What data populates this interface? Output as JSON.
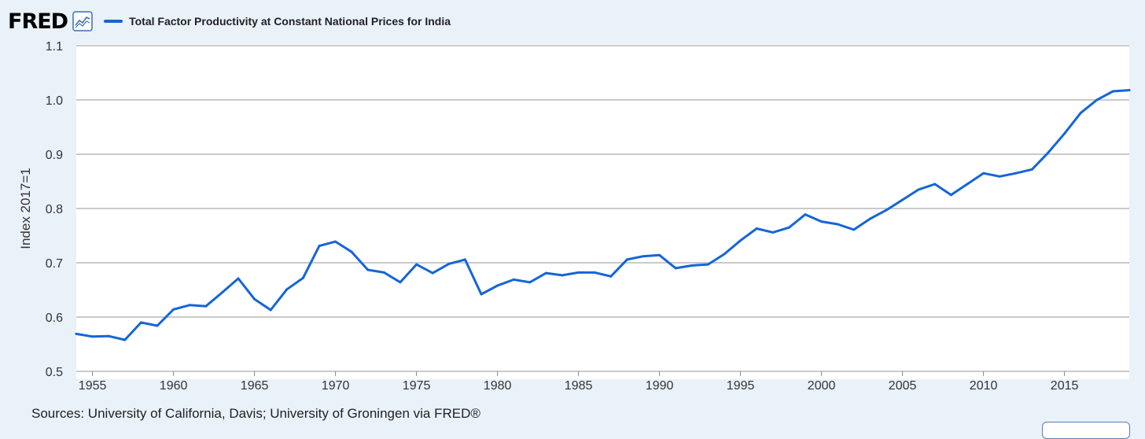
{
  "header": {
    "logo_text": "FRED",
    "logo_icon": "line-graph-icon",
    "legend_label": "Total Factor Productivity at Constant National Prices for India"
  },
  "footer": {
    "sources": "Sources: University of California, Davis; University of Groningen via FRED®"
  },
  "colors": {
    "series": "#1565d8",
    "background": "#e9f1f9",
    "plot_area": "#ffffff",
    "gridline": "#b8b8b8"
  },
  "chart_data": {
    "type": "line",
    "title": "Total Factor Productivity at Constant National Prices for India",
    "xlabel": "",
    "ylabel": "Index 2017=1",
    "xlim": [
      1954,
      2019
    ],
    "ylim": [
      0.5,
      1.1
    ],
    "grid": true,
    "legend": "top-left",
    "x_ticks": [
      1955,
      1960,
      1965,
      1970,
      1975,
      1980,
      1985,
      1990,
      1995,
      2000,
      2005,
      2010,
      2015
    ],
    "y_ticks": [
      "0.5",
      "0.6",
      "0.7",
      "0.8",
      "0.9",
      "1.0",
      "1.1"
    ],
    "series": [
      {
        "name": "Total Factor Productivity at Constant National Prices for India",
        "x": [
          1954,
          1955,
          1956,
          1957,
          1958,
          1959,
          1960,
          1961,
          1962,
          1963,
          1964,
          1965,
          1966,
          1967,
          1968,
          1969,
          1970,
          1971,
          1972,
          1973,
          1974,
          1975,
          1976,
          1977,
          1978,
          1979,
          1980,
          1981,
          1982,
          1983,
          1984,
          1985,
          1986,
          1987,
          1988,
          1989,
          1990,
          1991,
          1992,
          1993,
          1994,
          1995,
          1996,
          1997,
          1998,
          1999,
          2000,
          2001,
          2002,
          2003,
          2004,
          2005,
          2006,
          2007,
          2008,
          2009,
          2010,
          2011,
          2012,
          2013,
          2014,
          2015,
          2016,
          2017,
          2018,
          2019
        ],
        "values": [
          0.569,
          0.564,
          0.565,
          0.558,
          0.59,
          0.584,
          0.614,
          0.622,
          0.62,
          0.645,
          0.671,
          0.633,
          0.613,
          0.651,
          0.672,
          0.731,
          0.739,
          0.72,
          0.687,
          0.682,
          0.664,
          0.697,
          0.681,
          0.698,
          0.706,
          0.642,
          0.658,
          0.669,
          0.664,
          0.681,
          0.677,
          0.682,
          0.682,
          0.675,
          0.706,
          0.712,
          0.714,
          0.69,
          0.695,
          0.697,
          0.716,
          0.741,
          0.763,
          0.756,
          0.765,
          0.789,
          0.776,
          0.771,
          0.761,
          0.781,
          0.797,
          0.816,
          0.835,
          0.845,
          0.825,
          0.845,
          0.865,
          0.859,
          0.865,
          0.872,
          0.903,
          0.938,
          0.976,
          1.0,
          1.016,
          1.018
        ]
      }
    ]
  }
}
